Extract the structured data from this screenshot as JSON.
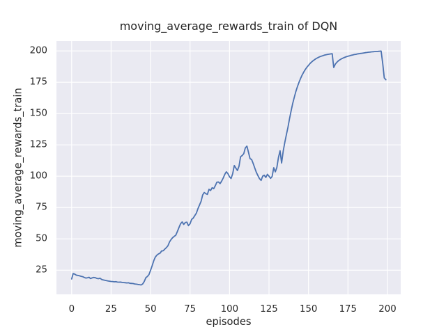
{
  "chart_data": {
    "type": "line",
    "title": "moving_average_rewards_train of DQN",
    "xlabel": "episodes",
    "ylabel": "moving_average_rewards_train",
    "legend": null,
    "grid": true,
    "style": "seaborn-darkgrid",
    "background_color": "#EAEAF2",
    "grid_color": "#FFFFFF",
    "text_color": "#262626",
    "xlim": [
      -9.6,
      208.4
    ],
    "ylim": [
      5.7,
      207.9
    ],
    "xticks": [
      0,
      25,
      50,
      75,
      100,
      125,
      150,
      175,
      200
    ],
    "yticks": [
      25,
      50,
      75,
      100,
      125,
      150,
      175,
      200
    ],
    "series": [
      {
        "name": "moving_average_rewards_train",
        "color": "#4C72B0",
        "line_width": 1.8,
        "x_start": 0,
        "x_step": 1,
        "values": [
          18.0,
          22.3,
          21.8,
          21.0,
          20.8,
          20.5,
          20.1,
          19.8,
          19.2,
          18.7,
          18.9,
          19.3,
          18.3,
          18.8,
          19.2,
          19.0,
          18.4,
          18.2,
          18.6,
          17.6,
          17.2,
          16.9,
          16.7,
          16.4,
          16.2,
          16.0,
          15.9,
          15.7,
          15.8,
          15.5,
          15.4,
          15.5,
          15.2,
          15.1,
          15.0,
          14.8,
          14.9,
          14.5,
          14.4,
          14.3,
          14.0,
          13.8,
          13.6,
          13.4,
          13.2,
          14.0,
          16.0,
          19.0,
          20.0,
          21.5,
          25.0,
          28.5,
          32.5,
          35.5,
          37.0,
          38.0,
          38.6,
          40.3,
          40.5,
          41.8,
          43.0,
          44.5,
          47.5,
          49.5,
          51.0,
          52.0,
          53.0,
          56.0,
          59.0,
          62.0,
          63.5,
          61.5,
          63.0,
          63.3,
          60.5,
          62.0,
          65.5,
          66.5,
          68.5,
          70.5,
          74.0,
          77.0,
          80.0,
          85.0,
          87.0,
          86.0,
          85.5,
          89.5,
          88.6,
          90.8,
          90.0,
          92.5,
          95.2,
          95.4,
          94.1,
          96.0,
          98.5,
          101.5,
          103.5,
          102.0,
          99.5,
          98.2,
          102.0,
          108.5,
          106.5,
          104.6,
          108.0,
          115.5,
          116.5,
          118.0,
          122.5,
          124.0,
          119.0,
          114.0,
          113.3,
          110.0,
          106.5,
          103.0,
          100.5,
          98.0,
          96.7,
          100.0,
          100.8,
          99.0,
          101.5,
          100.0,
          98.3,
          99.8,
          106.8,
          103.5,
          107.0,
          115.0,
          120.3,
          110.5,
          120.0,
          127.0,
          133.0,
          139.0,
          146.0,
          152.0,
          158.0,
          163.0,
          167.5,
          171.5,
          175.0,
          178.0,
          180.8,
          183.2,
          185.2,
          187.0,
          188.5,
          190.0,
          191.2,
          192.3,
          193.2,
          194.0,
          194.7,
          195.3,
          195.8,
          196.2,
          196.6,
          196.9,
          197.2,
          197.4,
          197.6,
          197.8,
          186.8,
          189.5,
          191.0,
          192.2,
          193.0,
          193.8,
          194.4,
          194.9,
          195.4,
          195.8,
          196.1,
          196.5,
          196.8,
          197.1,
          197.3,
          197.6,
          197.8,
          198.0,
          198.2,
          198.4,
          198.6,
          198.8,
          199.0,
          199.1,
          199.3,
          199.4,
          199.5,
          199.6,
          199.7,
          199.8,
          199.9,
          190.0,
          178.5,
          177.0
        ]
      }
    ]
  }
}
